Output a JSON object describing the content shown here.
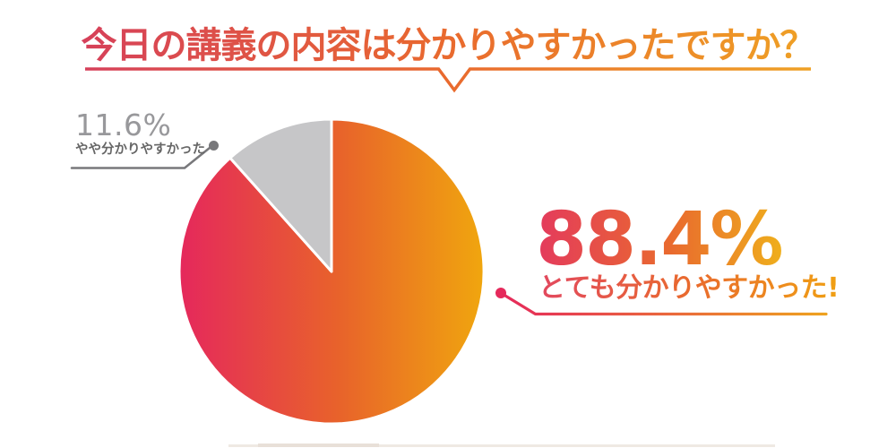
{
  "page": {
    "background": "#ffffff"
  },
  "title": {
    "text": "今日の講義の内容は分かりやすかったですか？"
  },
  "callouts": {
    "secondary": {
      "percent": "11.6%",
      "label": "やや分かりやすかった"
    },
    "primary": {
      "percent": "88.4%",
      "label": "とても分かりやすかった!"
    }
  },
  "colors": {
    "title_gradient_start": "#D6405A",
    "title_gradient_mid": "#E96A2E",
    "title_gradient_end": "#EFA125",
    "pie_gradient_start": "#E5285C",
    "pie_gradient_mid": "#E8622B",
    "pie_gradient_end": "#F0A60E",
    "accent_pink": "#E5295B",
    "accent_orange": "#EEA21F",
    "slice_secondary": "#C6C6C8",
    "gray_line": "#78787B",
    "gray_percent_text": "#98989B",
    "gray_label_text": "#666666"
  },
  "chart_data": {
    "type": "pie",
    "title": "今日の講義の内容は分かりやすかったですか？",
    "slices": [
      {
        "label": "とても分かりやすかった!",
        "value": 88.4,
        "display": "88.4%",
        "color": "gradient:#E5285C-#F0A60E"
      },
      {
        "label": "やや分かりやすかった",
        "value": 11.6,
        "display": "11.6%",
        "color": "#C6C6C8"
      }
    ],
    "start_angle": "12-o'clock clockwise",
    "legend_position": "callout-labels",
    "grid": false
  }
}
